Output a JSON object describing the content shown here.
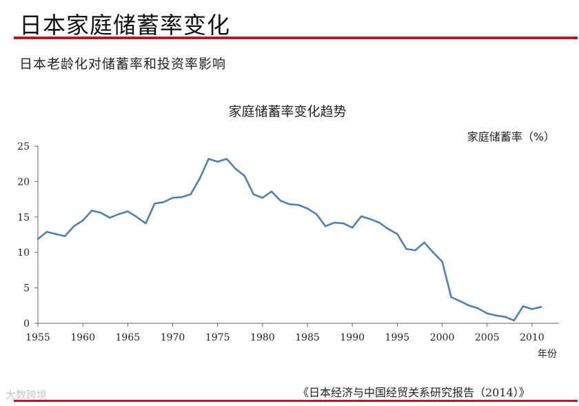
{
  "header": {
    "title": "日本家庭储蓄率变化",
    "subtitle": "日本老龄化对储蓄率和投资率影响"
  },
  "footer": {
    "source": "《日本经济与中国经贸关系研究报告（2014）》",
    "watermark": "大数跨境"
  },
  "colors": {
    "accent": "#b01c22",
    "line": "#4f7fb5",
    "axis": "#666666"
  },
  "chart_data": {
    "type": "line",
    "title": "家庭储蓄率变化趋势",
    "ylabel": "家庭储蓄率（%）",
    "xlabel": "年份",
    "xlim": [
      1955,
      2013
    ],
    "ylim": [
      0,
      25
    ],
    "x_ticks": [
      1955,
      1960,
      1965,
      1970,
      1975,
      1980,
      1985,
      1990,
      1995,
      2000,
      2005,
      2010
    ],
    "y_ticks": [
      0,
      5,
      10,
      15,
      20,
      25
    ],
    "grid": false,
    "series": [
      {
        "x": [
          1955,
          1956,
          1957,
          1958,
          1959,
          1960,
          1961,
          1962,
          1963,
          1964,
          1965,
          1966,
          1967,
          1968,
          1969,
          1970,
          1971,
          1972,
          1973,
          1974,
          1975,
          1976,
          1977,
          1978,
          1979,
          1980,
          1981,
          1982,
          1983,
          1984,
          1985,
          1986,
          1987,
          1988,
          1989,
          1990,
          1991,
          1992,
          1993,
          1994,
          1995,
          1996,
          1997,
          1998,
          1999,
          2000,
          2001,
          2002,
          2003,
          2004,
          2005,
          2006,
          2007,
          2008,
          2009,
          2010,
          2011
        ],
        "values": [
          11.9,
          12.9,
          12.6,
          12.3,
          13.7,
          14.5,
          15.9,
          15.6,
          14.9,
          15.4,
          15.8,
          15.0,
          14.1,
          16.9,
          17.1,
          17.7,
          17.8,
          18.2,
          20.4,
          23.2,
          22.8,
          23.2,
          21.8,
          20.8,
          18.2,
          17.7,
          18.6,
          17.3,
          16.8,
          16.7,
          16.2,
          15.4,
          13.7,
          14.2,
          14.1,
          13.5,
          15.1,
          14.7,
          14.2,
          13.3,
          12.6,
          10.5,
          10.3,
          11.4,
          10.0,
          8.7,
          3.7,
          3.1,
          2.5,
          2.1,
          1.4,
          1.1,
          0.9,
          0.4,
          2.4,
          2.0,
          2.3
        ]
      }
    ]
  }
}
